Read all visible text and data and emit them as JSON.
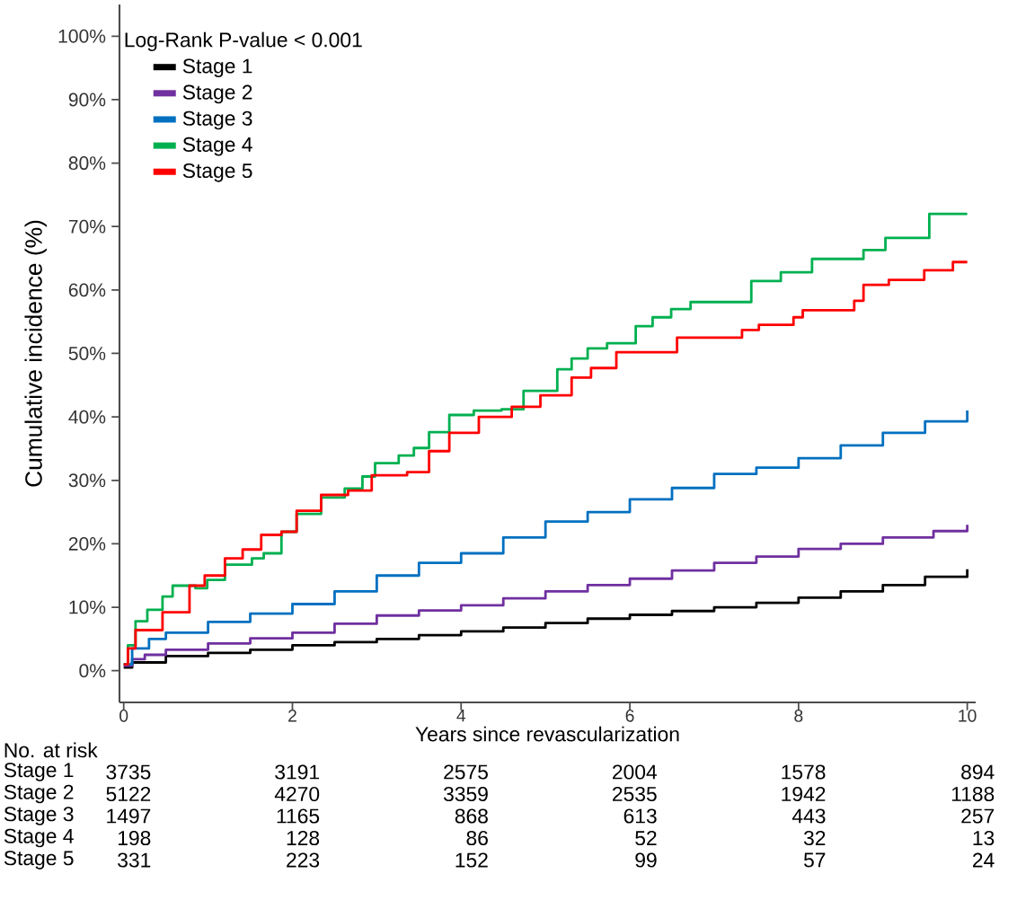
{
  "chart_data": {
    "type": "step",
    "xlabel": "Years since revascularization",
    "ylabel": "Cumulative incidence (%)",
    "legend_title": "Log-Rank P-value < 0.001",
    "legend": "top left",
    "xlim": [
      -0.05,
      10.1
    ],
    "ylim": [
      -5,
      105
    ],
    "xticks": [
      0,
      2,
      4,
      6,
      8,
      10
    ],
    "yticks": [
      {
        "value": 0,
        "label": "0%"
      },
      {
        "value": 10,
        "label": "10%"
      },
      {
        "value": 20,
        "label": "20%"
      },
      {
        "value": 30,
        "label": "30%"
      },
      {
        "value": 40,
        "label": "40%"
      },
      {
        "value": 50,
        "label": "50%"
      },
      {
        "value": 60,
        "label": "60%"
      },
      {
        "value": 70,
        "label": "70%"
      },
      {
        "value": 80,
        "label": "80%"
      },
      {
        "value": 90,
        "label": "90%"
      },
      {
        "value": 100,
        "label": "100%"
      }
    ],
    "series": [
      {
        "name": "Stage 1",
        "color": "#000000",
        "x": [
          0,
          0.1,
          0.5,
          1,
          1.5,
          2,
          2.5,
          3,
          3.5,
          4,
          4.5,
          5,
          5.5,
          6,
          6.5,
          7,
          7.5,
          8,
          8.5,
          9,
          9.5,
          10
        ],
        "values": [
          0.5,
          1.3,
          2.3,
          2.8,
          3.3,
          4,
          4.5,
          5,
          5.6,
          6.2,
          6.8,
          7.5,
          8.2,
          8.8,
          9.4,
          10,
          10.7,
          11.5,
          12.5,
          13.5,
          14.8,
          16
        ]
      },
      {
        "name": "Stage 2",
        "color": "#7030a0",
        "x": [
          0,
          0.1,
          0.25,
          0.5,
          1,
          1.5,
          2,
          2.5,
          3,
          3.5,
          4,
          4.5,
          5,
          5.5,
          6,
          6.5,
          7,
          7.5,
          8,
          8.5,
          9,
          9.6,
          10
        ],
        "values": [
          0.8,
          1.8,
          2.5,
          3.3,
          4.3,
          5.1,
          6,
          7.4,
          8.7,
          9.5,
          10.3,
          11.4,
          12.5,
          13.5,
          14.5,
          15.8,
          17,
          18,
          19.2,
          20,
          21,
          22,
          23
        ]
      },
      {
        "name": "Stage 3",
        "color": "#0070c0",
        "x": [
          0,
          0.1,
          0.3,
          0.5,
          1,
          1.5,
          2,
          2.5,
          3,
          3.5,
          4,
          4.5,
          5,
          5.5,
          6,
          6.5,
          7,
          7.5,
          8,
          8.5,
          9,
          9.5,
          10
        ],
        "values": [
          1,
          3.5,
          5,
          6,
          7.7,
          9,
          10.5,
          12.5,
          15,
          17,
          18.5,
          21,
          23.5,
          25,
          27,
          28.8,
          31,
          32,
          33.5,
          35.5,
          37.5,
          39.3,
          41
        ]
      },
      {
        "name": "Stage 4",
        "color": "#00b050",
        "x": [
          0,
          0.05,
          0.14,
          0.28,
          0.46,
          0.58,
          0.85,
          0.99,
          1.2,
          1.45,
          1.52,
          1.66,
          1.87,
          2.05,
          2.34,
          2.62,
          2.83,
          2.98,
          3.26,
          3.44,
          3.62,
          3.86,
          4.15,
          4.48,
          4.74,
          5.14,
          5.31,
          5.5,
          5.73,
          6.07,
          6.27,
          6.49,
          6.72,
          7.33,
          7.44,
          7.79,
          8.16,
          8.77,
          9.03,
          9.46,
          9.55,
          10
        ],
        "values": [
          1,
          4,
          7.8,
          9.6,
          11.7,
          13.4,
          13,
          14.3,
          16.7,
          16.7,
          17.7,
          18.5,
          21.9,
          24.7,
          27.3,
          28.7,
          30.6,
          32.7,
          33.9,
          35.1,
          37.6,
          40.3,
          41,
          41.2,
          44.1,
          47.5,
          49.2,
          50.8,
          51.6,
          54.3,
          55.7,
          57,
          58.1,
          58.1,
          61.4,
          62.8,
          64.9,
          66.3,
          68.2,
          68.2,
          72,
          72
        ]
      },
      {
        "name": "Stage 5",
        "color": "#ff0000",
        "x": [
          0,
          0.05,
          0.14,
          0.46,
          0.78,
          0.96,
          1.2,
          1.41,
          1.63,
          1.87,
          2.05,
          2.34,
          2.66,
          2.94,
          3.36,
          3.62,
          3.86,
          4.21,
          4.6,
          4.94,
          5.31,
          5.54,
          5.84,
          6.56,
          7.33,
          7.53,
          7.94,
          8.05,
          8.66,
          8.77,
          9.07,
          9.49,
          9.83,
          10
        ],
        "values": [
          1,
          3.5,
          6.4,
          9.2,
          13.4,
          15,
          17.7,
          19.1,
          21.4,
          21.9,
          25.2,
          27.7,
          28.4,
          30.8,
          31.3,
          34.6,
          37.5,
          40,
          41.6,
          43.4,
          46.2,
          47.7,
          50.2,
          52.5,
          53.7,
          54.5,
          55.7,
          56.8,
          58.3,
          60.8,
          61.6,
          63.1,
          64.4,
          64.4
        ]
      }
    ],
    "annotations": [
      "No. at risk",
      "Stage 1",
      "3735",
      "3191",
      "2575",
      "2004",
      "1578",
      "894",
      "Stage 2",
      "5122",
      "4270",
      "3359",
      "2535",
      "1942",
      "1188",
      "Stage 3",
      "1497",
      "1165",
      "868",
      "613",
      "443",
      "257",
      "Stage 4",
      "198",
      "128",
      "86",
      "52",
      "32",
      "13",
      "Stage 5",
      "331",
      "223",
      "152",
      "99",
      "57",
      "24"
    ]
  }
}
